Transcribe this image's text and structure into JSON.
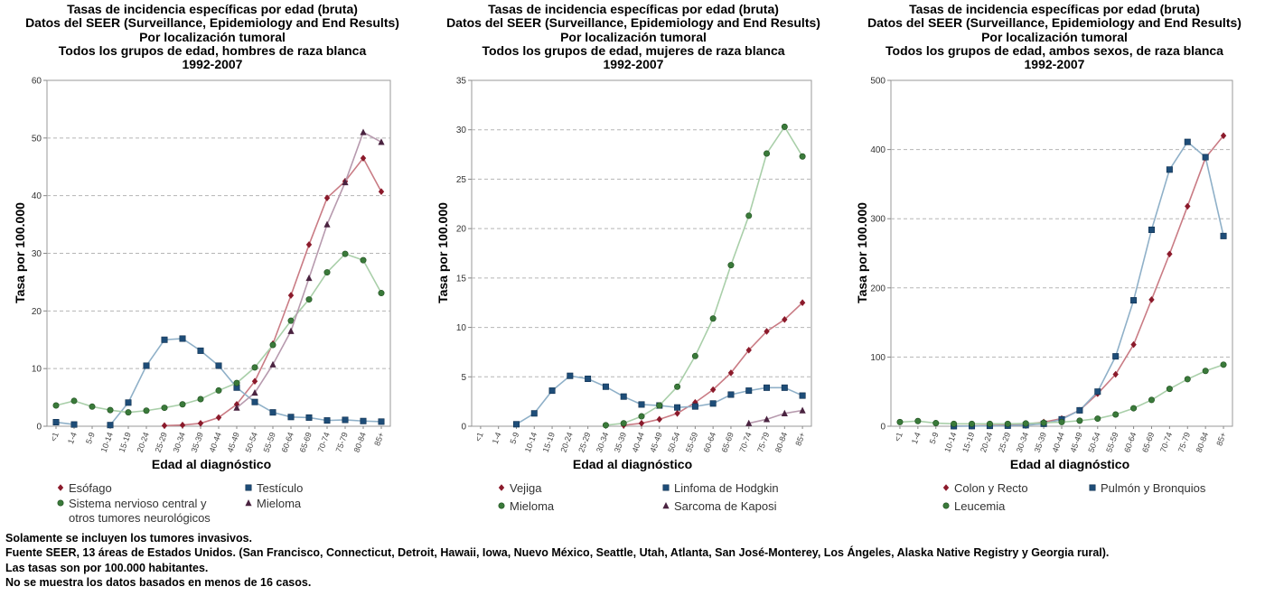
{
  "chart_data": [
    {
      "type": "line",
      "title_lines": [
        "Tasas de incidencia específicas por edad (bruta)",
        "Datos del SEER (Surveillance, Epidemiology and End Results)",
        "Por localización tumoral",
        "Todos los grupos de edad, hombres de raza blanca",
        "1992-2007"
      ],
      "xlabel": "Edad al diagnóstico",
      "ylabel": "Tasa por 100.000",
      "ylim": [
        0,
        60
      ],
      "yticks": [
        "0",
        "10",
        "20",
        "30",
        "40",
        "50",
        "60"
      ],
      "ytick_values": [
        0,
        10,
        20,
        30,
        40,
        50,
        60
      ],
      "grid": true,
      "legend_position": "bottom",
      "categories": [
        "<1",
        "1-4",
        "5-9",
        "10-14",
        "15-19",
        "20-24",
        "25-29",
        "30-34",
        "35-39",
        "40-44",
        "45-49",
        "50-54",
        "55-59",
        "60-64",
        "65-69",
        "70-74",
        "75-79",
        "80-84",
        "85+"
      ],
      "series": [
        {
          "name": "Esófago",
          "color": "#8b1a2b",
          "line": "#c97b84",
          "marker": "diamond",
          "values": [
            null,
            null,
            null,
            null,
            null,
            null,
            0.1,
            0.2,
            0.5,
            1.5,
            3.8,
            7.8,
            14.3,
            22.7,
            31.5,
            39.6,
            42.5,
            46.5,
            40.7
          ]
        },
        {
          "name": "Testículo",
          "color": "#1e4d78",
          "line": "#8fb0c8",
          "marker": "square",
          "values": [
            0.7,
            0.3,
            null,
            0.2,
            4.1,
            10.5,
            15.0,
            15.2,
            13.1,
            10.5,
            6.7,
            4.2,
            2.4,
            1.6,
            1.5,
            1.0,
            1.1,
            0.9,
            0.8
          ]
        },
        {
          "name": "Sistema nervioso central y otros tumores neurológicos",
          "label_lines": [
            "Sistema nervioso central y",
            "otros tumores neurológicos"
          ],
          "color": "#3a7a3a",
          "line": "#a9cfa9",
          "marker": "circle",
          "values": [
            3.6,
            4.4,
            3.4,
            2.8,
            2.4,
            2.7,
            3.2,
            3.8,
            4.7,
            6.2,
            7.5,
            10.2,
            14.1,
            18.3,
            22.0,
            26.7,
            29.9,
            28.8,
            23.1
          ]
        },
        {
          "name": "Mieloma",
          "color": "#4a2340",
          "line": "#b79aae",
          "marker": "triangle",
          "values": [
            null,
            null,
            null,
            null,
            null,
            null,
            null,
            null,
            null,
            null,
            3.2,
            5.8,
            10.7,
            16.5,
            25.7,
            35.0,
            42.3,
            51.0,
            49.3
          ]
        }
      ]
    },
    {
      "type": "line",
      "title_lines": [
        "Tasas de incidencia específicas por edad (bruta)",
        "Datos del SEER (Surveillance, Epidemiology and End Results)",
        "Por localización tumoral",
        "Todos los grupos de edad, mujeres de raza blanca",
        "1992-2007"
      ],
      "xlabel": "Edad al diagnóstico",
      "ylabel": "Tasa por 100.000",
      "ylim": [
        0,
        35
      ],
      "yticks": [
        "0",
        "5",
        "10",
        "15",
        "20",
        "25",
        "30",
        "35"
      ],
      "ytick_values": [
        0,
        5,
        10,
        15,
        20,
        25,
        30,
        35
      ],
      "grid": true,
      "legend_position": "bottom",
      "categories": [
        "<1",
        "1-4",
        "5-9",
        "10-14",
        "15-19",
        "20-24",
        "25-29",
        "30-34",
        "35-39",
        "40-44",
        "45-49",
        "50-54",
        "55-59",
        "60-64",
        "65-69",
        "70-74",
        "75-79",
        "80-84",
        "85+"
      ],
      "series": [
        {
          "name": "Vejiga",
          "color": "#8b1a2b",
          "line": "#c97b84",
          "marker": "diamond",
          "values": [
            null,
            null,
            null,
            null,
            null,
            null,
            null,
            null,
            0.1,
            0.3,
            0.7,
            1.3,
            2.4,
            3.7,
            5.4,
            7.7,
            9.6,
            10.8,
            12.5
          ]
        },
        {
          "name": "Linfoma de Hodgkin",
          "color": "#1e4d78",
          "line": "#8fb0c8",
          "marker": "square",
          "values": [
            null,
            null,
            0.2,
            1.3,
            3.6,
            5.1,
            4.8,
            4.0,
            3.0,
            2.2,
            2.1,
            1.9,
            2.0,
            2.3,
            3.2,
            3.6,
            3.9,
            3.9,
            3.1
          ]
        },
        {
          "name": "Mieloma",
          "color": "#3a7a3a",
          "line": "#a9cfa9",
          "marker": "circle",
          "values": [
            null,
            null,
            null,
            null,
            null,
            null,
            null,
            0.1,
            0.3,
            1.0,
            2.1,
            4.0,
            7.1,
            10.9,
            16.3,
            21.3,
            27.6,
            30.3,
            27.3
          ]
        },
        {
          "name": "Sarcoma de Kaposi",
          "color": "#4a2340",
          "line": "#b79aae",
          "marker": "triangle",
          "values": [
            null,
            null,
            null,
            null,
            null,
            null,
            null,
            null,
            null,
            null,
            null,
            null,
            null,
            null,
            null,
            0.3,
            0.7,
            1.3,
            1.6
          ]
        }
      ]
    },
    {
      "type": "line",
      "title_lines": [
        "Tasas de incidencia específicas por edad (bruta)",
        "Datos del SEER (Surveillance, Epidemiology and End Results)",
        "Por localización tumoral",
        "Todos los grupos de edad, ambos sexos, de raza blanca",
        "1992-2007"
      ],
      "xlabel": "Edad al diagnóstico",
      "ylabel": "Tasa por 100.000",
      "ylim": [
        0,
        500
      ],
      "yticks": [
        "0",
        "100",
        "200",
        "300",
        "400",
        "500"
      ],
      "ytick_values": [
        0,
        100,
        200,
        300,
        400,
        500
      ],
      "grid": true,
      "legend_position": "bottom",
      "categories": [
        "<1",
        "1-4",
        "5-9",
        "10-14",
        "15-19",
        "20-24",
        "25-29",
        "30-34",
        "35-39",
        "40-44",
        "45-49",
        "50-54",
        "55-59",
        "60-64",
        "65-69",
        "70-74",
        "75-79",
        "80-84",
        "85+"
      ],
      "series": [
        {
          "name": "Colon y Recto",
          "color": "#8b1a2b",
          "line": "#c97b84",
          "marker": "diamond",
          "values": [
            null,
            null,
            null,
            0.2,
            0.4,
            1.0,
            1.7,
            3.0,
            6.0,
            11.0,
            23.0,
            47.0,
            75.0,
            118.0,
            183.0,
            249.0,
            318.0,
            388.0,
            420.0
          ]
        },
        {
          "name": "Pulmón y Bronquios",
          "color": "#1e4d78",
          "line": "#8fb0c8",
          "marker": "square",
          "values": [
            null,
            null,
            null,
            0.1,
            0.2,
            0.5,
            0.8,
            1.5,
            3.5,
            10.0,
            23.0,
            50.0,
            101.0,
            182.0,
            284.0,
            371.0,
            411.0,
            389.0,
            275.0
          ]
        },
        {
          "name": "Leucemia",
          "color": "#3a7a3a",
          "line": "#a9cfa9",
          "marker": "circle",
          "values": [
            6.0,
            7.5,
            4.5,
            3.5,
            3.5,
            3.5,
            3.5,
            4.0,
            5.0,
            6.0,
            8.0,
            11.0,
            17.0,
            26.0,
            38.0,
            54.0,
            68.0,
            80.0,
            89.0
          ]
        }
      ]
    }
  ],
  "notes": [
    "Solamente se incluyen los tumores invasivos.",
    "Fuente SEER, 13 áreas de Estados Unidos. (San Francisco, Connecticut, Detroit, Hawaii, Iowa, Nuevo México, Seattle, Utah, Atlanta, San José-Monterey, Los Ángeles, Alaska Native Registry y Georgia rural).",
    "Las tasas son por 100.000 habitantes.",
    "No se muestra los datos basados en menos de 16 casos."
  ]
}
